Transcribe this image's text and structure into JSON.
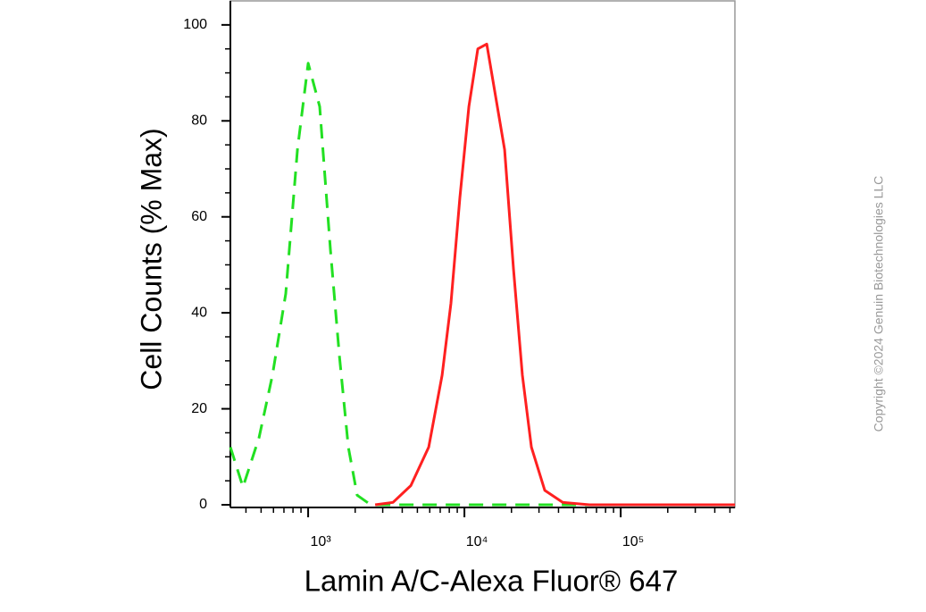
{
  "chart_data": {
    "type": "line",
    "ylabel": "Cell Counts (% Max)",
    "xlabel": "Lamin A/C-Alexa Fluor® 647",
    "copyright": "Copyright ©2024 Genuin Biotechnologies LLC",
    "xscale": "log",
    "xlim": [
      318,
      538000
    ],
    "xticks": [
      {
        "value": 1000,
        "label": "10³"
      },
      {
        "value": 10000,
        "label": "10⁴"
      },
      {
        "value": 100000,
        "label": "10⁵"
      }
    ],
    "xminorticks": [
      400,
      500,
      600,
      700,
      800,
      900,
      2000,
      3000,
      4000,
      5000,
      6000,
      7000,
      8000,
      9000,
      20000,
      30000,
      40000,
      50000,
      60000,
      70000,
      80000,
      90000,
      200000,
      300000,
      400000,
      500000
    ],
    "ylim": [
      0,
      105
    ],
    "yticks": [
      0,
      20,
      40,
      60,
      80,
      100
    ],
    "yminorticks": [
      5,
      10,
      15,
      25,
      30,
      35,
      45,
      50,
      55,
      65,
      70,
      75,
      85,
      90,
      95
    ],
    "series": [
      {
        "color": "#22e022",
        "linestyle": "dashed",
        "x": [
          318,
          383,
          485,
          591,
          719,
          854,
          1000,
          1186,
          1389,
          1585,
          1808,
          2061,
          2512,
          538000
        ],
        "values": [
          12,
          3.7,
          14,
          27,
          44,
          74,
          92,
          83,
          53,
          31,
          12,
          2,
          0,
          0
        ]
      },
      {
        "color": "#ff2020",
        "linestyle": "solid",
        "x": [
          2683,
          3490,
          4540,
          5907,
          7196,
          8204,
          9357,
          10684,
          12180,
          13890,
          15850,
          18070,
          20610,
          23500,
          26830,
          32660,
          42540,
          63100,
          538000
        ],
        "values": [
          0,
          0.5,
          4,
          12,
          27,
          42,
          64,
          83,
          95,
          96,
          85,
          74,
          49,
          27,
          12,
          3,
          0.5,
          0,
          0
        ]
      }
    ]
  }
}
